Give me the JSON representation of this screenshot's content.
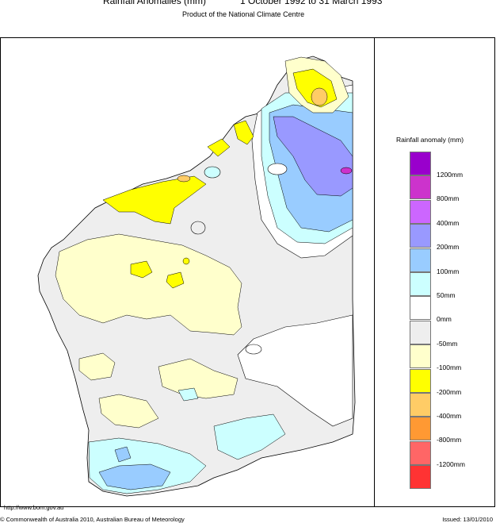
{
  "header": {
    "title": "Rainfall Anomalies (mm)",
    "period": "1 October 1992 to 31 March 1993",
    "subtitle": "Product of the National Climate Centre"
  },
  "legend": {
    "title": "Rainfall anomaly (mm)",
    "swatches": [
      {
        "label": "1200mm",
        "color": "#9900cc"
      },
      {
        "label": "800mm",
        "color": "#cc33cc"
      },
      {
        "label": "400mm",
        "color": "#cc66ff"
      },
      {
        "label": "200mm",
        "color": "#9999ff"
      },
      {
        "label": "100mm",
        "color": "#99ccff"
      },
      {
        "label": "50mm",
        "color": "#ccffff"
      },
      {
        "label": "0mm",
        "color": "#ffffff"
      },
      {
        "label": "-50mm",
        "color": "#eeeeee"
      },
      {
        "label": "-100mm",
        "color": "#ffffcc"
      },
      {
        "label": "-200mm",
        "color": "#ffff00"
      },
      {
        "label": "-400mm",
        "color": "#ffcc66"
      },
      {
        "label": "-800mm",
        "color": "#ff9933"
      },
      {
        "label": "-1200mm",
        "color": "#ff6666"
      },
      {
        "label": "",
        "color": "#ff3333"
      }
    ]
  },
  "footer": {
    "url": "http://www.bom.gov.au",
    "copyright": "© Commonwealth of Australia 2010, Australian Bureau of Meteorology",
    "issued": "Issued: 13/01/2010"
  }
}
